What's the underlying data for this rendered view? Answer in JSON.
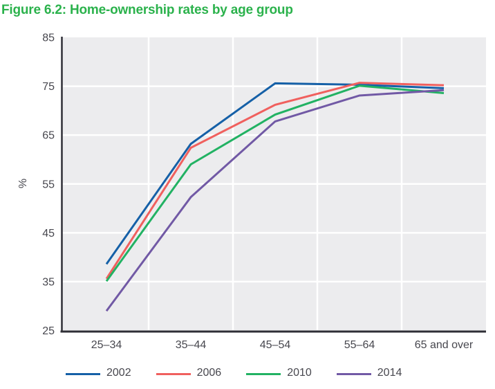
{
  "title": "Figure 6.2: Home-ownership rates by age group",
  "colors": {
    "title_green": "#2BB24C",
    "plot_background": "#ECECEE",
    "gridline": "#FFFFFF",
    "axis_line": "#2F2F36",
    "text": "#47474E"
  },
  "y_axis": {
    "label": "%",
    "ticks": [
      25,
      35,
      45,
      55,
      65,
      75,
      85
    ]
  },
  "x_axis": {
    "categories": [
      "25–34",
      "35–44",
      "45–54",
      "55–64",
      "65 and over"
    ]
  },
  "chart_data": {
    "type": "line",
    "title": "Figure 6.2: Home-ownership rates by age group",
    "categories": [
      "25–34",
      "35–44",
      "45–54",
      "55–64",
      "65 and over"
    ],
    "xlabel": "",
    "ylabel": "%",
    "ylim": [
      25,
      85
    ],
    "yticks": [
      25,
      35,
      45,
      55,
      65,
      75,
      85
    ],
    "grid": true,
    "legend_position": "bottom",
    "series": [
      {
        "name": "2002",
        "color": "#1560A7",
        "values": [
          38.6,
          63.2,
          75.6,
          75.3,
          74.6
        ]
      },
      {
        "name": "2006",
        "color": "#F0605E",
        "values": [
          35.6,
          62.4,
          71.2,
          75.7,
          75.2
        ]
      },
      {
        "name": "2010",
        "color": "#22B263",
        "values": [
          35.1,
          59.0,
          69.2,
          75.1,
          73.6
        ]
      },
      {
        "name": "2014",
        "color": "#7159A5",
        "values": [
          29.0,
          52.3,
          67.8,
          73.1,
          74.2
        ]
      }
    ]
  }
}
